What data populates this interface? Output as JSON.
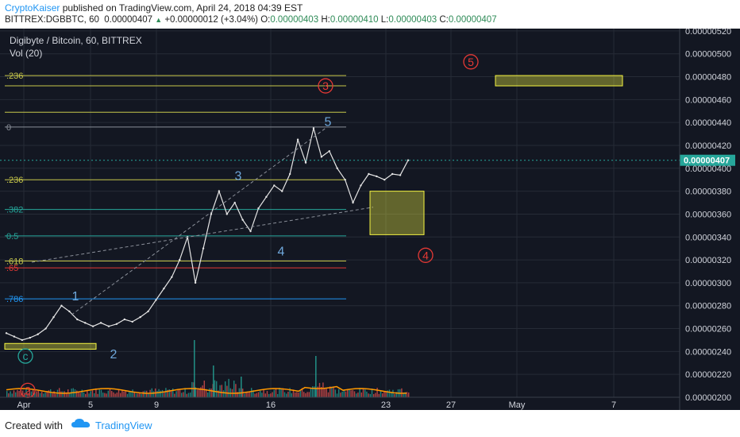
{
  "header": {
    "author": "CryptoKaiser",
    "published": "published on TradingView.com, April 24, 2018 04:39 EST",
    "symbol": "BITTREX:DGBBTC, 60",
    "last": "0.00000407",
    "change": "+0.00000012 (+3.04%)",
    "o_label": "O:",
    "o_value": "0.00000403",
    "h_label": "H:",
    "h_value": "0.00000410",
    "l_label": "L:",
    "l_value": "0.00000403",
    "c_label": "C:",
    "c_value": "0.00000407"
  },
  "legend": {
    "title": "Digibyte / Bitcoin, 60, BITTREX",
    "vol": "Vol (20)"
  },
  "footer": {
    "created_with": "Created with",
    "brand": "TradingView"
  },
  "colors": {
    "background": "#131722",
    "price": "#e5e5e5",
    "up": "#26a69a",
    "down": "#ef5350",
    "fib": "#c7c74a",
    "wave_blue": "#6fa8dc",
    "wave_red": "#e53935",
    "highlight_box": "#f5f542",
    "last_price_badge": "#26a69a"
  },
  "chart_data": {
    "type": "line",
    "x_ticks": [
      "Apr",
      "5",
      "9",
      "16",
      "23",
      "27",
      "May",
      "7"
    ],
    "y_ticks": [
      "0.00000520",
      "0.00000500",
      "0.00000480",
      "0.00000460",
      "0.00000440",
      "0.00000420",
      "0.00000400",
      "0.00000380",
      "0.00000360",
      "0.00000340",
      "0.00000320",
      "0.00000300",
      "0.00000280",
      "0.00000260",
      "0.00000240",
      "0.00000220",
      "0.00000200"
    ],
    "ylim": [
      2e-06,
      5.22e-06
    ],
    "last_price": "0.00000407",
    "series": [
      {
        "values": [
          2.56e-06,
          2.53e-06,
          2.5e-06,
          2.52e-06,
          2.55e-06,
          2.6e-06,
          2.7e-06,
          2.8e-06,
          2.75e-06,
          2.68e-06,
          2.65e-06,
          2.62e-06,
          2.65e-06,
          2.62e-06,
          2.64e-06,
          2.68e-06,
          2.66e-06,
          2.7e-06,
          2.75e-06,
          2.85e-06,
          2.95e-06,
          3.05e-06,
          3.2e-06,
          3.4e-06,
          3e-06,
          3.3e-06,
          3.6e-06,
          3.8e-06,
          3.6e-06,
          3.7e-06,
          3.55e-06,
          3.45e-06,
          3.65e-06,
          3.75e-06,
          3.85e-06,
          3.8e-06,
          3.95e-06,
          4.25e-06,
          4.05e-06,
          4.35e-06,
          4.1e-06,
          4.15e-06,
          4e-06,
          3.9e-06,
          3.7e-06,
          3.85e-06,
          3.95e-06,
          3.93e-06,
          3.9e-06,
          3.95e-06,
          3.94e-06,
          4.07e-06
        ]
      }
    ],
    "fib_levels": [
      {
        "label": ".236",
        "value": 4.81e-06,
        "color": "#c7c74a"
      },
      {
        "label": "",
        "value": 4.72e-06,
        "color": "#c7c74a"
      },
      {
        "label": "",
        "value": 4.49e-06,
        "color": "#c7c74a"
      },
      {
        "label": "0",
        "value": 4.36e-06,
        "color": "#8a8f99"
      },
      {
        "label": ".236",
        "value": 3.9e-06,
        "color": "#c7c74a"
      },
      {
        "label": ".382",
        "value": 3.64e-06,
        "color": "#26a69a"
      },
      {
        "label": "0.5",
        "value": 3.41e-06,
        "color": "#26a69a"
      },
      {
        "label": ".618",
        "value": 3.19e-06,
        "color": "#c7c74a"
      },
      {
        "label": ".65",
        "value": 3.13e-06,
        "color": "#e53935"
      },
      {
        "label": ".786",
        "value": 2.86e-06,
        "color": "#2196f3"
      }
    ],
    "wave_labels": [
      {
        "text": "1",
        "color": "#6fa8dc"
      },
      {
        "text": "2",
        "color": "#6fa8dc"
      },
      {
        "text": "3",
        "color": "#6fa8dc"
      },
      {
        "text": "4",
        "color": "#6fa8dc"
      },
      {
        "text": "5",
        "color": "#6fa8dc"
      },
      {
        "text": "3",
        "color": "#e53935",
        "circled": true
      },
      {
        "text": "4",
        "color": "#e53935",
        "circled": true
      },
      {
        "text": "5",
        "color": "#e53935",
        "circled": true
      },
      {
        "text": "2",
        "color": "#e53935",
        "circled": true
      },
      {
        "text": "c",
        "color": "#26a69a",
        "circled": true
      }
    ]
  }
}
